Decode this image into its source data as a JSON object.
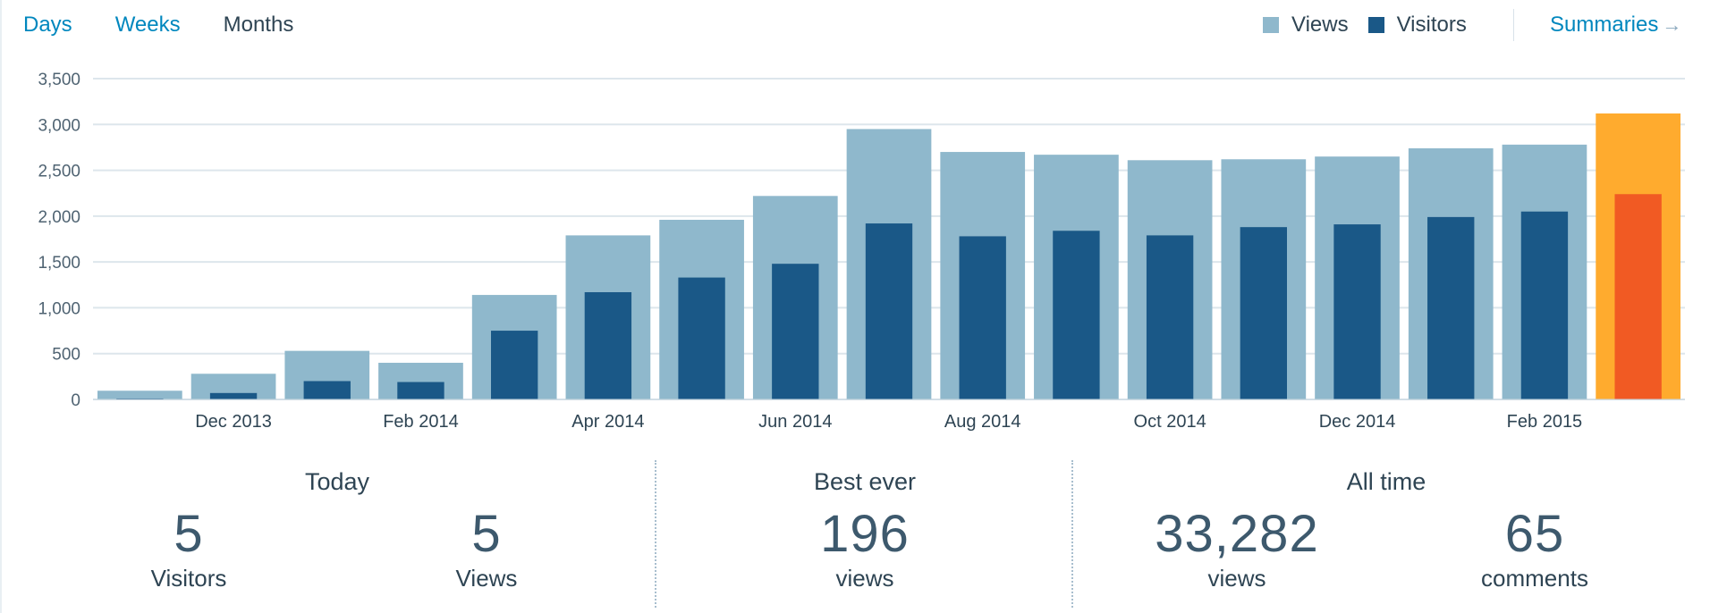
{
  "tabs": {
    "days": "Days",
    "weeks": "Weeks",
    "months": "Months",
    "active": "months"
  },
  "legend": {
    "views_label": "Views",
    "visitors_label": "Visitors"
  },
  "summaries_link": "Summaries",
  "colors": {
    "views": "#8fb8cc",
    "visitors": "#1a5887",
    "current_views": "#ffab2e",
    "current_visitors": "#f15a23",
    "grid": "#dde6ec",
    "link": "#0087be"
  },
  "chart_data": {
    "type": "bar",
    "y_ticks": [
      "0",
      "500",
      "1,000",
      "1,500",
      "2,000",
      "2,500",
      "3,000",
      "3,500"
    ],
    "ylim": [
      0,
      3500
    ],
    "x_tick_labels": [
      "Dec 2013",
      "Feb 2014",
      "Apr 2014",
      "Jun 2014",
      "Aug 2014",
      "Oct 2014",
      "Dec 2014",
      "Feb 2015"
    ],
    "x_tick_bar_index": [
      1,
      3,
      5,
      7,
      9,
      11,
      13,
      15
    ],
    "highlight_index": 16,
    "grid": true,
    "series": [
      {
        "name": "Views",
        "values": [
          95,
          280,
          530,
          400,
          1140,
          1790,
          1960,
          2220,
          2950,
          2700,
          2670,
          2610,
          2620,
          2650,
          2740,
          2780,
          3120
        ]
      },
      {
        "name": "Visitors",
        "values": [
          10,
          70,
          200,
          190,
          750,
          1170,
          1330,
          1480,
          1920,
          1780,
          1840,
          1790,
          1880,
          1910,
          1990,
          2050,
          2240
        ]
      }
    ]
  },
  "stats": {
    "today": {
      "heading": "Today",
      "visitors_value": "5",
      "visitors_label": "Visitors",
      "views_value": "5",
      "views_label": "Views"
    },
    "best_ever": {
      "heading": "Best ever",
      "value": "196",
      "label": "views"
    },
    "all_time": {
      "heading": "All time",
      "views_value": "33,282",
      "views_label": "views",
      "comments_value": "65",
      "comments_label": "comments"
    }
  }
}
